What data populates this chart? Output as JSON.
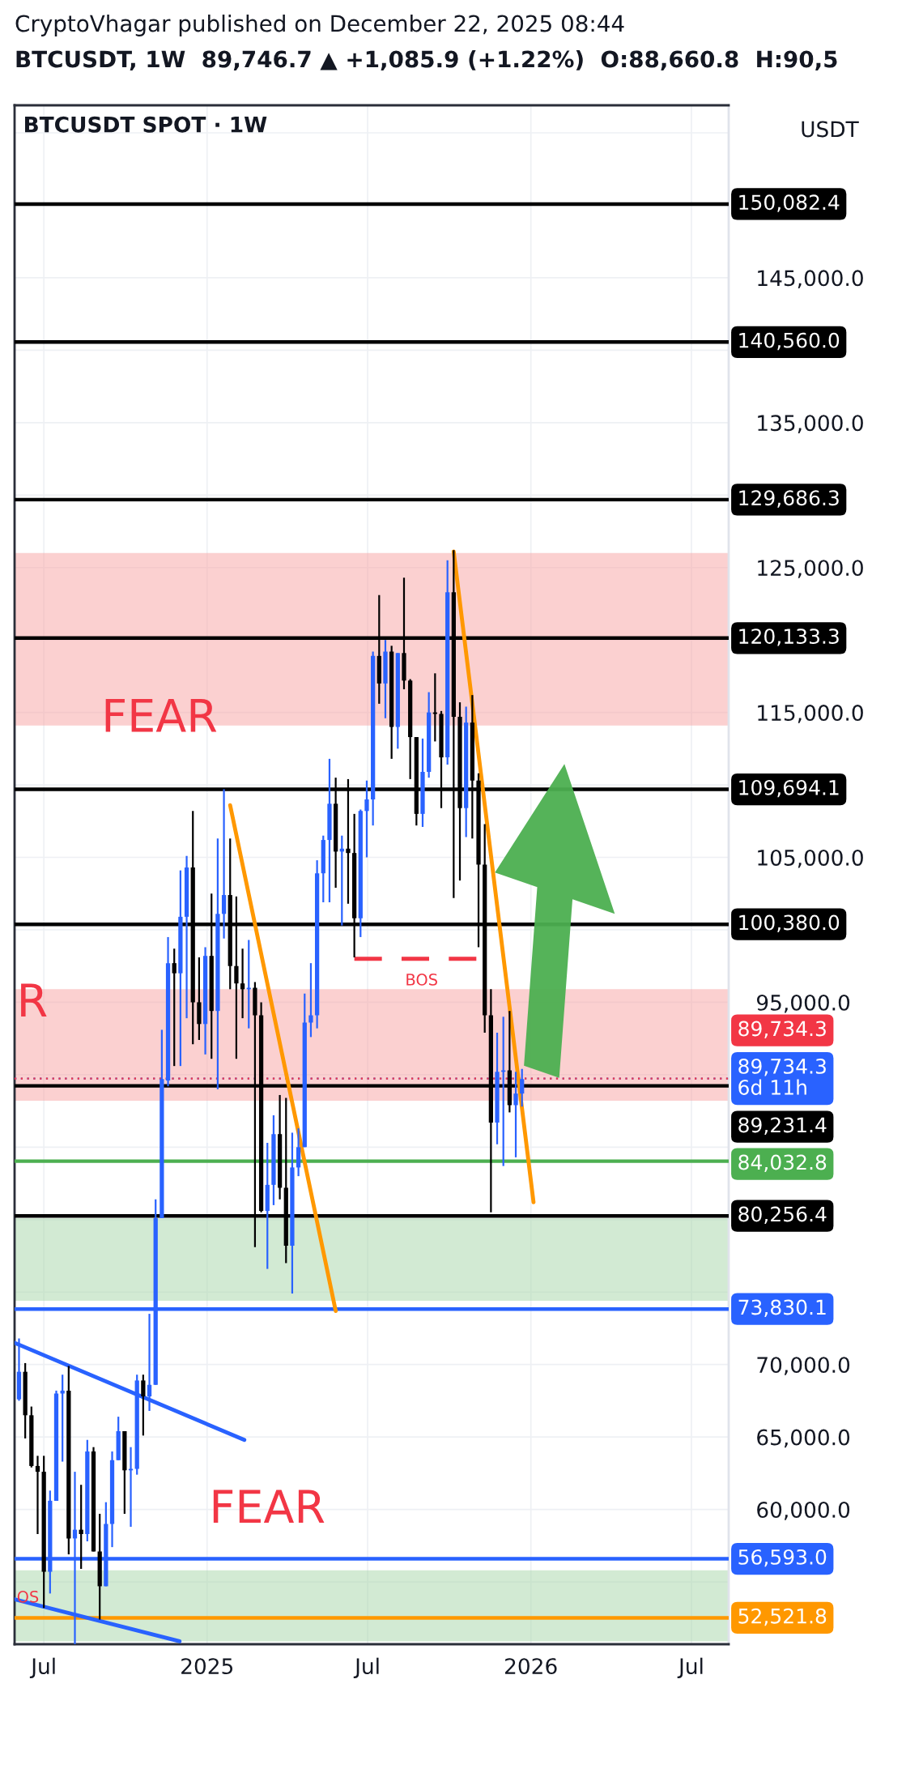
{
  "chart_data": {
    "type": "candlestick",
    "title": "CryptoVhagar published on December 22, 2025 08:44",
    "subtitle": "BTCUSDT, 1W  89,746.7 ▲ +1,085.9 (+1.22%)  O:88,660.8  H:90,5",
    "ylabel": "USDT",
    "colors": [
      "#2962ff",
      "#000000",
      "#000000",
      "#000000",
      "#000000",
      "#2962ff",
      "#2962ff",
      "#2962ff",
      "#000000",
      "#2962ff",
      "#000000",
      "#2962ff",
      "#000000",
      "#000000",
      "#2962ff",
      "#2962ff",
      "#2962ff",
      "#000000",
      "#2962ff",
      "#2962ff",
      "#000000",
      "#2962ff",
      "#2962ff",
      "#2962ff",
      "#2962ff",
      "#000000",
      "#2962ff",
      "#2962ff",
      "#000000",
      "#000000",
      "#2962ff",
      "#000000",
      "#2962ff",
      "#2962ff",
      "#000000",
      "#000000",
      "#000000",
      "#2962ff",
      "#000000",
      "#000000",
      "#2962ff",
      "#2962ff",
      "#000000",
      "#000000",
      "#2962ff",
      "#2962ff",
      "#2962ff",
      "#2962ff",
      "#2962ff",
      "#2962ff",
      "#2962ff",
      "#000000",
      "#2962ff",
      "#000000",
      "#000000",
      "#2962ff",
      "#2962ff",
      "#2962ff",
      "#000000",
      "#2962ff",
      "#000000",
      "#2962ff",
      "#000000",
      "#000000",
      "#000000",
      "#2962ff",
      "#2962ff",
      "#000000",
      "#000000",
      "#2962ff",
      "#000000",
      "#000000",
      "#2962ff",
      "#000000",
      "#000000",
      "#000000",
      "#000000",
      "#2962ff",
      "#2962ff",
      "#000000",
      "#2962ff",
      "#2962ff"
    ],
    "x": [
      "2024-06-03",
      "2024-06-10",
      "2024-06-17",
      "2024-06-24",
      "2024-07-01",
      "2024-07-08",
      "2024-07-15",
      "2024-07-22",
      "2024-07-29",
      "2024-08-05",
      "2024-08-12",
      "2024-08-19",
      "2024-08-26",
      "2024-09-02",
      "2024-09-09",
      "2024-09-16",
      "2024-09-23",
      "2024-09-30",
      "2024-10-07",
      "2024-10-14",
      "2024-10-21",
      "2024-10-28",
      "2024-11-04",
      "2024-11-11",
      "2024-11-18",
      "2024-11-25",
      "2024-12-02",
      "2024-12-09",
      "2024-12-16",
      "2024-12-23",
      "2024-12-30",
      "2025-01-06",
      "2025-01-13",
      "2025-01-20",
      "2025-01-27",
      "2025-02-03",
      "2025-02-10",
      "2025-02-17",
      "2025-02-24",
      "2025-03-03",
      "2025-03-10",
      "2025-03-17",
      "2025-03-24",
      "2025-03-31",
      "2025-04-07",
      "2025-04-14",
      "2025-04-21",
      "2025-04-28",
      "2025-05-05",
      "2025-05-12",
      "2025-05-19",
      "2025-05-26",
      "2025-06-02",
      "2025-06-09",
      "2025-06-16",
      "2025-06-23",
      "2025-06-30",
      "2025-07-07",
      "2025-07-14",
      "2025-07-21",
      "2025-07-28",
      "2025-08-04",
      "2025-08-11",
      "2025-08-18",
      "2025-08-25",
      "2025-09-01",
      "2025-09-08",
      "2025-09-15",
      "2025-09-22",
      "2025-09-29",
      "2025-10-06",
      "2025-10-13",
      "2025-10-20",
      "2025-10-27",
      "2025-11-03",
      "2025-11-10",
      "2025-11-17",
      "2025-11-24",
      "2025-12-01",
      "2025-12-08",
      "2025-12-15",
      "2025-12-22"
    ],
    "ohlc": [
      [
        67600,
        71800,
        67500,
        69500
      ],
      [
        69500,
        70100,
        64900,
        66500
      ],
      [
        66500,
        67100,
        62900,
        63000
      ],
      [
        63000,
        63700,
        58300,
        62600
      ],
      [
        62600,
        63700,
        53200,
        55700
      ],
      [
        55700,
        61300,
        54200,
        60600
      ],
      [
        60600,
        68200,
        60600,
        68000
      ],
      [
        68000,
        69300,
        63300,
        68200
      ],
      [
        68200,
        69900,
        56900,
        58000
      ],
      [
        58000,
        62600,
        50700,
        58600
      ],
      [
        58600,
        61700,
        55900,
        58300
      ],
      [
        58300,
        64800,
        57800,
        64000
      ],
      [
        64000,
        64300,
        57100,
        57100
      ],
      [
        57100,
        59700,
        52400,
        54700
      ],
      [
        54700,
        60500,
        54700,
        59000
      ],
      [
        59000,
        64000,
        57400,
        63400
      ],
      [
        63400,
        66400,
        63400,
        65400
      ],
      [
        65400,
        65400,
        59700,
        62700
      ],
      [
        62700,
        64300,
        58800,
        62800
      ],
      [
        62800,
        69300,
        62400,
        68900
      ],
      [
        68900,
        69300,
        65100,
        67800
      ],
      [
        67800,
        73500,
        66800,
        68600
      ],
      [
        68600,
        81400,
        68600,
        80100
      ],
      [
        80100,
        93100,
        80100,
        89700
      ],
      [
        89600,
        99500,
        89200,
        97700
      ],
      [
        97700,
        98700,
        90600,
        97000
      ],
      [
        97000,
        104100,
        90600,
        100900
      ],
      [
        100900,
        105100,
        93900,
        104300
      ],
      [
        104300,
        108200,
        92100,
        95000
      ],
      [
        95000,
        98100,
        92400,
        93500
      ],
      [
        93500,
        98800,
        91400,
        98200
      ],
      [
        98200,
        102500,
        91100,
        94400
      ],
      [
        94400,
        106300,
        89000,
        101100
      ],
      [
        101100,
        109700,
        99400,
        102400
      ],
      [
        102400,
        106300,
        95900,
        97500
      ],
      [
        97500,
        102300,
        91100,
        96300
      ],
      [
        96300,
        98700,
        93900,
        95900
      ],
      [
        95900,
        99300,
        93200,
        96000
      ],
      [
        96000,
        96400,
        78100,
        94100
      ],
      [
        94100,
        95000,
        80500,
        80600
      ],
      [
        80600,
        85300,
        76600,
        82400
      ],
      [
        82400,
        87200,
        81000,
        85900
      ],
      [
        85900,
        88600,
        81400,
        82200
      ],
      [
        82200,
        88400,
        77000,
        78200
      ],
      [
        78200,
        86000,
        74900,
        83600
      ],
      [
        83600,
        86300,
        83000,
        85000
      ],
      [
        85000,
        95600,
        85000,
        93600
      ],
      [
        93600,
        97700,
        92600,
        94100
      ],
      [
        94100,
        104800,
        93200,
        103900
      ],
      [
        103900,
        106500,
        101900,
        106200
      ],
      [
        106200,
        111800,
        101900,
        108700
      ],
      [
        108700,
        110500,
        102900,
        105400
      ],
      [
        105400,
        106500,
        100300,
        105600
      ],
      [
        105600,
        110400,
        101800,
        105300
      ],
      [
        105300,
        108000,
        98100,
        100800
      ],
      [
        100800,
        108300,
        99500,
        108200
      ],
      [
        108200,
        110300,
        105000,
        109000
      ],
      [
        109000,
        119200,
        107200,
        118900
      ],
      [
        118900,
        123100,
        115600,
        117000
      ],
      [
        117000,
        120000,
        114600,
        119200
      ],
      [
        119200,
        119600,
        111800,
        114000
      ],
      [
        114000,
        119100,
        112500,
        119100
      ],
      [
        119100,
        124300,
        116600,
        117200
      ],
      [
        117200,
        117300,
        110400,
        113300
      ],
      [
        113300,
        113300,
        107200,
        108000
      ],
      [
        108000,
        113200,
        107100,
        110900
      ],
      [
        110900,
        116400,
        110500,
        115000
      ],
      [
        115000,
        117700,
        113000,
        114900
      ],
      [
        114900,
        115100,
        108400,
        111900
      ],
      [
        111900,
        125500,
        111400,
        123300
      ],
      [
        123300,
        126200,
        102200,
        114700
      ],
      [
        114700,
        115700,
        103400,
        108400
      ],
      [
        108400,
        115400,
        106400,
        114300
      ],
      [
        114300,
        116200,
        106300,
        110300
      ],
      [
        110300,
        110800,
        98800,
        104500
      ],
      [
        104500,
        107300,
        92900,
        94100
      ],
      [
        94100,
        95900,
        80500,
        86700
      ],
      [
        86700,
        92900,
        85200,
        90200
      ],
      [
        90200,
        94000,
        83700,
        90300
      ],
      [
        90300,
        94400,
        87400,
        87900
      ],
      [
        87900,
        90200,
        84300,
        88700
      ],
      [
        88700,
        90400,
        87800,
        89700
      ]
    ],
    "series": [
      {
        "type": "line",
        "color": "#ff9800",
        "x": [
          "2025-01-27",
          "2025-05-26"
        ],
        "values": [
          108600,
          73700
        ]
      },
      {
        "type": "line",
        "color": "#ff9800",
        "x": [
          "2025-10-06",
          "2026-01-04"
        ],
        "values": [
          126100,
          81200
        ]
      },
      {
        "type": "line",
        "color": "#2962ff",
        "x": [
          "2024-05-29",
          "2025-02-12"
        ],
        "values": [
          71500,
          64800
        ]
      },
      {
        "type": "line",
        "color": "#2962ff",
        "x": [
          "2024-05-29",
          "2024-12-01"
        ],
        "values": [
          53800,
          50900
        ]
      },
      {
        "type": "line",
        "color": "#f23645",
        "line_style": "dashed",
        "x": [
          "2025-06-16",
          "2025-11-03"
        ],
        "values": [
          98000,
          98000
        ]
      }
    ],
    "bands": [
      {
        "axis": "y",
        "from": 114100,
        "to": 126000,
        "color": "#f7a1a1"
      },
      {
        "axis": "y",
        "from": 88200,
        "to": 95900,
        "color": "#f7a1a1"
      },
      {
        "axis": "y",
        "from": 74400,
        "to": 80100,
        "color": "#a5d6a7"
      },
      {
        "axis": "y",
        "from": 50900,
        "to": 55800,
        "color": "#a5d6a7"
      }
    ],
    "ref_lines": [
      {
        "axis": "y",
        "value": 150082.4,
        "label": "150,082.4",
        "color": "#000000",
        "line_style": "solid"
      },
      {
        "axis": "y",
        "value": 140560.0,
        "label": "140,560.0",
        "color": "#000000",
        "line_style": "solid"
      },
      {
        "axis": "y",
        "value": 129686.3,
        "label": "129,686.3",
        "color": "#000000",
        "line_style": "solid"
      },
      {
        "axis": "y",
        "value": 120133.3,
        "label": "120,133.3",
        "color": "#000000",
        "line_style": "solid"
      },
      {
        "axis": "y",
        "value": 109694.1,
        "label": "109,694.1",
        "color": "#000000",
        "line_style": "solid"
      },
      {
        "axis": "y",
        "value": 100380.0,
        "label": "100,380.0",
        "color": "#000000",
        "line_style": "solid"
      },
      {
        "axis": "y",
        "value": 89734.3,
        "label": "89,734.3\n6d 11h",
        "color": "#2962ff",
        "line_style": "dotted"
      },
      {
        "axis": "y",
        "value": 89734.3,
        "label": "89,734.3",
        "color": "#f23645",
        "line_style": "dotted"
      },
      {
        "axis": "y",
        "value": 89231.4,
        "label": "89,231.4",
        "color": "#000000",
        "line_style": "solid"
      },
      {
        "axis": "y",
        "value": 84032.8,
        "label": "84,032.8",
        "color": "#4caf50",
        "line_style": "solid"
      },
      {
        "axis": "y",
        "value": 80256.4,
        "label": "80,256.4",
        "color": "#000000",
        "line_style": "solid"
      },
      {
        "axis": "y",
        "value": 73830.1,
        "label": "73,830.1",
        "color": "#2962ff",
        "line_style": "solid"
      },
      {
        "axis": "y",
        "value": 56593.0,
        "label": "56,593.0",
        "color": "#2962ff",
        "line_style": "solid"
      },
      {
        "axis": "y",
        "value": 52521.8,
        "label": "52,521.8",
        "color": "#ff9800",
        "line_style": "solid"
      }
    ],
    "annotations": [
      "BTCUSDT SPOT · 1W",
      "FEAR",
      "FEAR",
      "R",
      "BOS",
      "OS"
    ],
    "xlim": [
      "2024-05-29",
      "2026-08-12"
    ],
    "xticks": [
      {
        "value": "2024-07-01",
        "label": "Jul"
      },
      {
        "value": "2025-01-01",
        "label": "2025"
      },
      {
        "value": "2025-07-01",
        "label": "Jul"
      },
      {
        "value": "2026-01-01",
        "label": "2026"
      },
      {
        "value": "2026-07-01",
        "label": "Jul"
      }
    ],
    "ylim": [
      50700,
      156900
    ],
    "yticks": [
      {
        "value": 55000,
        "label": null
      },
      {
        "value": 60000,
        "label": "60,000.0"
      },
      {
        "value": 65000,
        "label": "65,000.0"
      },
      {
        "value": 70000,
        "label": "70,000.0"
      },
      {
        "value": 75000,
        "label": null
      },
      {
        "value": 80000,
        "label": null
      },
      {
        "value": 85000,
        "label": null
      },
      {
        "value": 90000,
        "label": null
      },
      {
        "value": 95000,
        "label": "95,000.0"
      },
      {
        "value": 100000,
        "label": null
      },
      {
        "value": 105000,
        "label": "105,000.0"
      },
      {
        "value": 110000,
        "label": null
      },
      {
        "value": 115000,
        "label": "115,000.0"
      },
      {
        "value": 120000,
        "label": null
      },
      {
        "value": 125000,
        "label": "125,000.0"
      },
      {
        "value": 130000,
        "label": null
      },
      {
        "value": 135000,
        "label": "135,000.0"
      },
      {
        "value": 140000,
        "label": null
      },
      {
        "value": 145000,
        "label": "145,000.0"
      },
      {
        "value": 150000,
        "label": null
      },
      {
        "value": 155000,
        "label": null
      }
    ],
    "grid": true
  }
}
